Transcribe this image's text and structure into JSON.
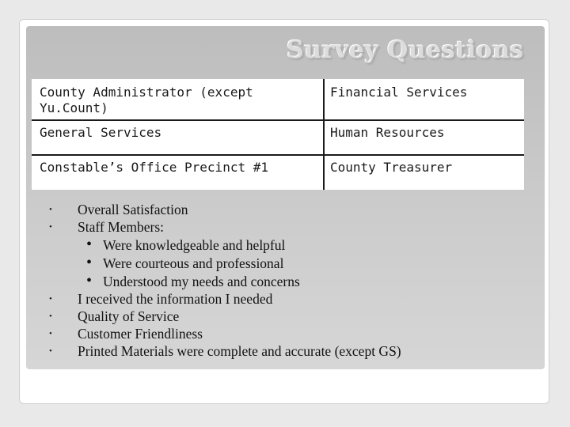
{
  "slide": {
    "title": "Survey Questions",
    "departments": [
      [
        "County Administrator (except Yu.Count)",
        "Financial Services"
      ],
      [
        "General Services",
        "Human Resources"
      ],
      [
        "Constable’s Office Precinct #1",
        "County Treasurer"
      ]
    ],
    "bullet_symbol": "•",
    "questions": [
      {
        "text": "Overall Satisfaction"
      },
      {
        "text": "Staff Members:",
        "sub": [
          "Were knowledgeable and helpful",
          "Were courteous and professional",
          "Understood my needs and concerns"
        ]
      },
      {
        "text": "I received the information I needed"
      },
      {
        "text": "Quality of Service"
      },
      {
        "text": "Customer Friendliness"
      },
      {
        "text": "Printed Materials were complete and accurate (except GS)"
      }
    ]
  }
}
